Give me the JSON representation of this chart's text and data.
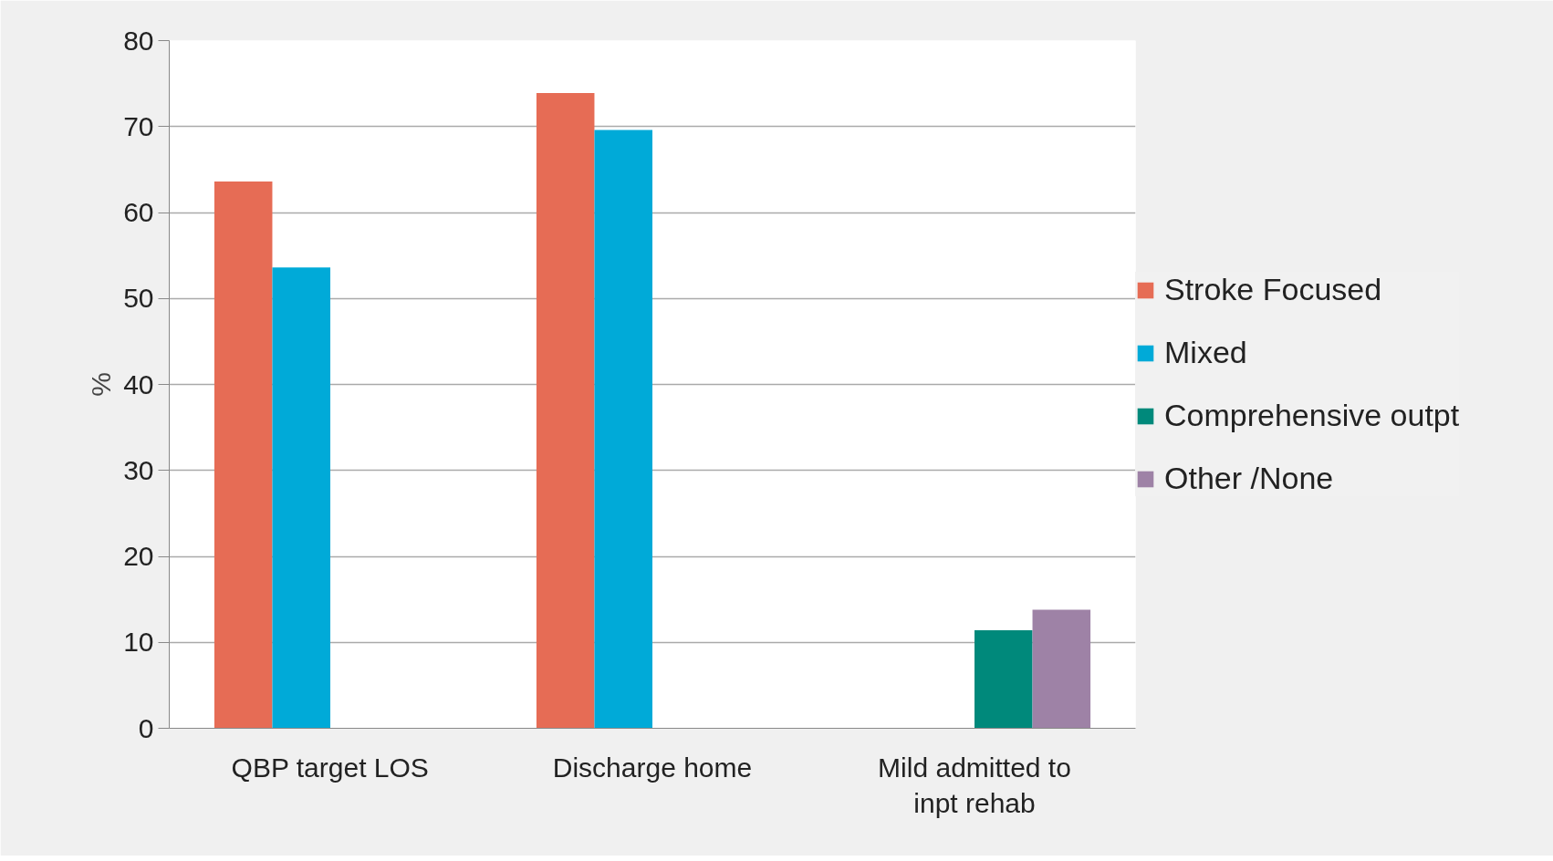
{
  "chart_data": {
    "type": "bar",
    "ylabel": "%",
    "categories": [
      "QBP target LOS",
      "Discharge home",
      "Mild admitted to inpt rehab"
    ],
    "series": [
      {
        "name": "Stroke Focused",
        "color": "#e66c55",
        "values": [
          63.6,
          73.9,
          null
        ]
      },
      {
        "name": "Mixed",
        "color": "#00aad8",
        "values": [
          53.6,
          69.6,
          null
        ]
      },
      {
        "name": "Comprehensive outpt",
        "color": "#00897b",
        "values": [
          null,
          null,
          11.4
        ]
      },
      {
        "name": "Other /None",
        "color": "#9e82a6",
        "values": [
          null,
          null,
          13.8
        ]
      }
    ],
    "ylim": [
      0,
      80
    ],
    "yticks": [
      0,
      10,
      20,
      30,
      40,
      50,
      60,
      70,
      80
    ],
    "grid": "y",
    "legend": "right"
  }
}
